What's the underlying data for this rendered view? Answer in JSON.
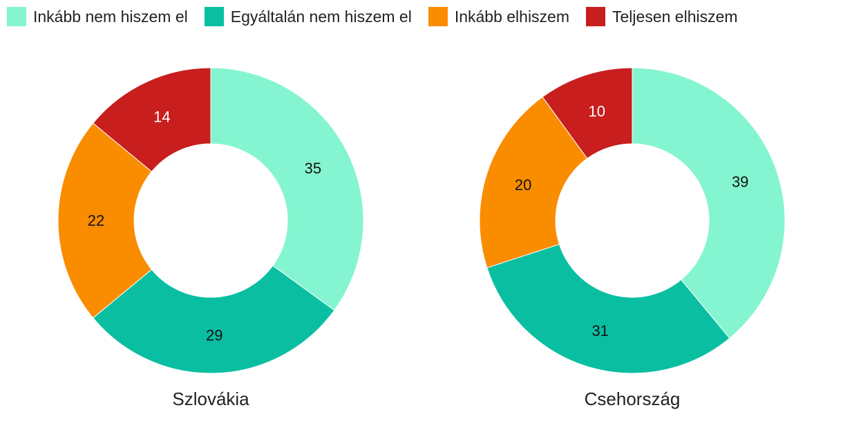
{
  "chart_data": [
    {
      "type": "pie",
      "title": "Szlovákia",
      "categories": [
        "Inkább nem hiszem el",
        "Egyáltalán nem hiszem el",
        "Inkább elhiszem",
        "Teljesen elhiszem"
      ],
      "values": [
        35,
        29,
        22,
        14
      ],
      "legend": "top"
    },
    {
      "type": "pie",
      "title": "Csehország",
      "categories": [
        "Inkább nem hiszem el",
        "Egyáltalán nem hiszem el",
        "Inkább elhiszem",
        "Teljesen elhiszem"
      ],
      "values": [
        39,
        31,
        20,
        10
      ],
      "legend": "top"
    }
  ],
  "legend": {
    "items": [
      {
        "label": "Inkább nem hiszem el",
        "color": "#84f5d0"
      },
      {
        "label": "Egyáltalán nem hiszem el",
        "color": "#0abfa1"
      },
      {
        "label": "Inkább elhiszem",
        "color": "#fa8c00"
      },
      {
        "label": "Teljesen elhiszem",
        "color": "#c81e1e"
      }
    ]
  },
  "colors": [
    "#84f5d0",
    "#0abfa1",
    "#fa8c00",
    "#c81e1e"
  ],
  "label_colors": [
    "#111111",
    "#111111",
    "#111111",
    "#ffffff"
  ]
}
